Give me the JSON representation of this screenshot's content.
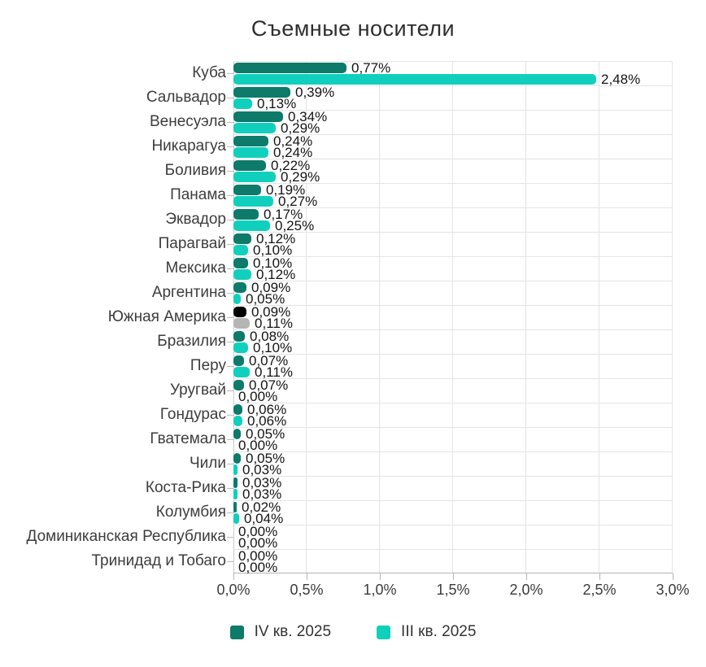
{
  "title": "Съемные носители",
  "chart_data": {
    "type": "bar",
    "orientation": "horizontal",
    "unit": "%",
    "decimal_separator": ",",
    "xlim": [
      0,
      3.0
    ],
    "x_tick_labels": [
      "0,0%",
      "0,5%",
      "1,0%",
      "1,5%",
      "2,0%",
      "2,5%",
      "3,0%"
    ],
    "grid": true,
    "legend_position": "bottom",
    "categories": [
      "Куба",
      "Сальвадор",
      "Венесуэла",
      "Никарагуа",
      "Боливия",
      "Панама",
      "Эквадор",
      "Парагвай",
      "Мексика",
      "Аргентина",
      "Южная Америка",
      "Бразилия",
      "Перу",
      "Уругвай",
      "Гондурас",
      "Гватемала",
      "Чили",
      "Коста-Рика",
      "Колумбия",
      "Доминиканская Республика",
      "Тринидад и Тобаго"
    ],
    "series": [
      {
        "name": "IV кв. 2025",
        "color": "#0d7a6a",
        "values": [
          0.77,
          0.39,
          0.34,
          0.24,
          0.22,
          0.19,
          0.17,
          0.12,
          0.1,
          0.09,
          0.09,
          0.08,
          0.07,
          0.07,
          0.06,
          0.05,
          0.05,
          0.03,
          0.02,
          0.0,
          0.0
        ]
      },
      {
        "name": "III кв. 2025",
        "color": "#10d0bd",
        "values": [
          2.48,
          0.13,
          0.29,
          0.24,
          0.29,
          0.27,
          0.25,
          0.1,
          0.12,
          0.05,
          0.11,
          0.1,
          0.11,
          0.0,
          0.06,
          0.0,
          0.03,
          0.03,
          0.04,
          0.0,
          0.0
        ]
      }
    ],
    "highlight": {
      "category": "Южная Америка",
      "colors": [
        "#000000",
        "#b5b5b5"
      ]
    }
  },
  "legend": {
    "items": [
      {
        "label": "IV кв. 2025",
        "color": "#0d7a6a"
      },
      {
        "label": "III кв. 2025",
        "color": "#10d0bd"
      }
    ]
  },
  "colors": {
    "background": "#ffffff",
    "grid": "#e4e4e4",
    "axis": "#b5b5b5",
    "category_text": "#3d3d3d",
    "value_label_text": "#141414",
    "title_text": "#2e2e2e"
  }
}
